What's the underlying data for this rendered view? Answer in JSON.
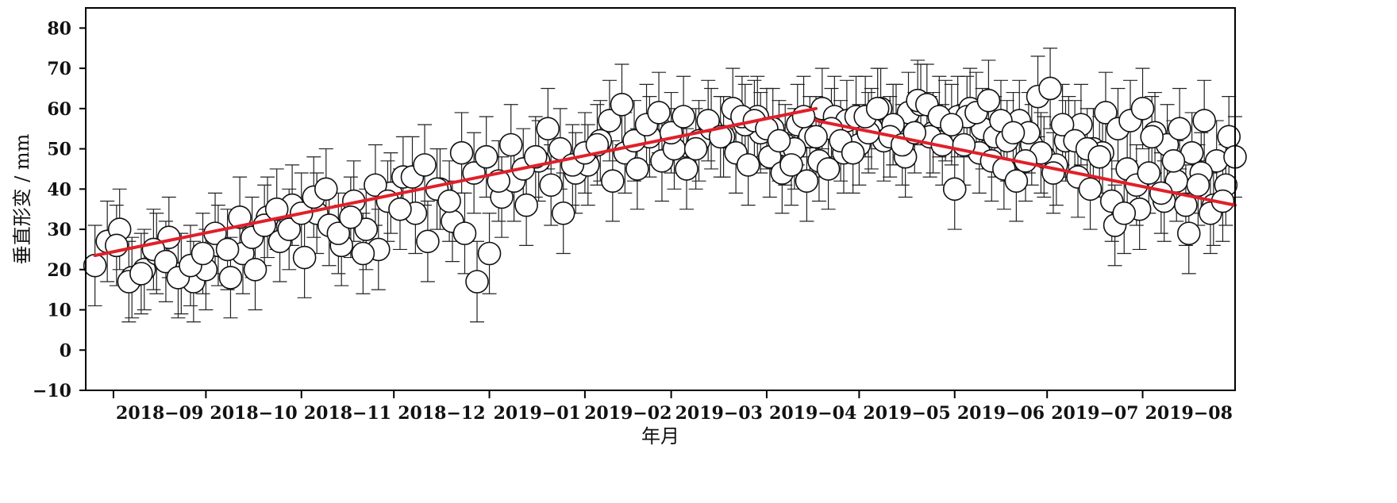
{
  "chart_data": {
    "type": "scatter",
    "title": "",
    "xlabel": "年月",
    "ylabel": "垂直形变 / mm",
    "ylim": [
      -10,
      85
    ],
    "xlim": [
      "2018-08-23",
      "2019-08-31"
    ],
    "grid": false,
    "legend": "none",
    "y_ticks": [
      -10,
      0,
      10,
      20,
      30,
      40,
      50,
      60,
      70,
      80
    ],
    "x_tick_labels": [
      "2018-09",
      "2018-10",
      "2018-11",
      "2018-12",
      "2019-01",
      "2019-02",
      "2019-03",
      "2019-04",
      "2019-05",
      "2019-06",
      "2019-07",
      "2019-08"
    ],
    "x_tick_dates": [
      "2018-09-01",
      "2018-10-01",
      "2018-11-01",
      "2018-12-01",
      "2019-01-01",
      "2019-02-01",
      "2019-03-01",
      "2019-04-01",
      "2019-05-01",
      "2019-06-01",
      "2019-07-01",
      "2019-08-01"
    ],
    "marker": {
      "shape": "circle",
      "fill": "#ffffff",
      "stroke": "#111111"
    },
    "error_bar_halfwidth_mm": 10,
    "series": [
      {
        "x": [
          "2018-08-26",
          "2018-08-30",
          "2018-09-03",
          "2018-09-07",
          "2018-09-11",
          "2018-09-15",
          "2018-09-19",
          "2018-09-23",
          "2018-09-27",
          "2018-10-01",
          "2018-10-05",
          "2018-10-09",
          "2018-10-13",
          "2018-10-17",
          "2018-10-21",
          "2018-10-25",
          "2018-10-29",
          "2018-11-02",
          "2018-11-06",
          "2018-11-10",
          "2018-11-14",
          "2018-11-18",
          "2018-11-22",
          "2018-11-26",
          "2018-11-30",
          "2018-12-04",
          "2018-12-08",
          "2018-12-12",
          "2018-12-16",
          "2018-12-20",
          "2018-12-24",
          "2018-12-28",
          "2019-01-01",
          "2019-01-05",
          "2019-01-09",
          "2019-01-13",
          "2019-01-17",
          "2019-01-21",
          "2019-01-25",
          "2019-01-29",
          "2019-02-02",
          "2019-02-06",
          "2019-02-10",
          "2019-02-14",
          "2019-02-18",
          "2019-02-22",
          "2019-02-26",
          "2019-03-02",
          "2019-03-06",
          "2019-03-10",
          "2019-03-14",
          "2019-03-18",
          "2019-03-22",
          "2019-03-26",
          "2019-03-30",
          "2019-04-03",
          "2019-04-07",
          "2019-04-11",
          "2019-04-15",
          "2019-04-19",
          "2019-04-23",
          "2019-04-27",
          "2019-05-01",
          "2019-05-05",
          "2019-05-09",
          "2019-05-13",
          "2019-05-17",
          "2019-05-21",
          "2019-05-25",
          "2019-05-29",
          "2019-06-02",
          "2019-06-06",
          "2019-06-10",
          "2019-06-14",
          "2019-06-18",
          "2019-06-22",
          "2019-06-26",
          "2019-06-30",
          "2019-07-04",
          "2019-07-08",
          "2019-07-12",
          "2019-07-16",
          "2019-07-20",
          "2019-07-24",
          "2019-07-28",
          "2019-08-01",
          "2019-08-05",
          "2019-08-09",
          "2019-08-13",
          "2019-08-17",
          "2019-08-21",
          "2019-08-25",
          "2019-08-29"
        ],
        "y": [
          21,
          27,
          30,
          18,
          20,
          24,
          28,
          19,
          17,
          20,
          26,
          18,
          24,
          20,
          33,
          27,
          36,
          23,
          34,
          31,
          26,
          37,
          30,
          25,
          39,
          43,
          34,
          27,
          40,
          32,
          29,
          17,
          24,
          38,
          42,
          36,
          47,
          41,
          34,
          44,
          46,
          52,
          42,
          49,
          45,
          53,
          47,
          50,
          45,
          52,
          55,
          53,
          49,
          46,
          54,
          55,
          51,
          56,
          53,
          60,
          58,
          57,
          51,
          55,
          52,
          56,
          59,
          61,
          54,
          57,
          58,
          60,
          55,
          53,
          52,
          57,
          51,
          48,
          46,
          53,
          56,
          50,
          59,
          55,
          57,
          60,
          54,
          51,
          55,
          49,
          57,
          47,
          53
        ]
      },
      {
        "x": [
          "2018-09-02",
          "2018-09-06",
          "2018-09-10",
          "2018-09-14",
          "2018-09-18",
          "2018-09-22",
          "2018-09-26",
          "2018-09-30",
          "2018-10-04",
          "2018-10-08",
          "2018-10-12",
          "2018-10-16",
          "2018-10-20",
          "2018-10-24",
          "2018-10-28",
          "2018-11-01",
          "2018-11-05",
          "2018-11-09",
          "2018-11-13",
          "2018-11-17",
          "2018-11-21",
          "2018-11-25",
          "2018-11-29",
          "2018-12-03",
          "2018-12-07",
          "2018-12-11",
          "2018-12-15",
          "2018-12-19",
          "2018-12-23",
          "2018-12-27",
          "2018-12-31",
          "2019-01-04",
          "2019-01-08",
          "2019-01-12",
          "2019-01-16",
          "2019-01-20",
          "2019-01-24",
          "2019-01-28",
          "2019-02-01",
          "2019-02-05",
          "2019-02-09",
          "2019-02-13",
          "2019-02-17",
          "2019-02-21",
          "2019-02-25",
          "2019-03-01",
          "2019-03-05",
          "2019-03-09",
          "2019-03-13",
          "2019-03-17",
          "2019-03-21",
          "2019-03-25",
          "2019-03-29",
          "2019-04-02",
          "2019-04-06",
          "2019-04-10",
          "2019-04-14",
          "2019-04-18",
          "2019-04-22",
          "2019-04-26",
          "2019-04-30",
          "2019-05-04",
          "2019-05-08",
          "2019-05-12",
          "2019-05-16",
          "2019-05-20",
          "2019-05-24",
          "2019-05-28",
          "2019-06-01",
          "2019-06-05",
          "2019-06-09",
          "2019-06-13",
          "2019-06-17",
          "2019-06-21",
          "2019-06-25",
          "2019-06-29",
          "2019-07-03",
          "2019-07-07",
          "2019-07-11",
          "2019-07-15",
          "2019-07-19",
          "2019-07-23",
          "2019-07-27",
          "2019-07-31",
          "2019-08-04",
          "2019-08-08",
          "2019-08-12",
          "2019-08-16",
          "2019-08-20",
          "2019-08-24",
          "2019-08-28"
        ],
        "y": [
          26,
          17,
          19,
          25,
          22,
          18,
          21,
          24,
          29,
          25,
          33,
          28,
          31,
          35,
          30,
          34,
          38,
          40,
          29,
          33,
          24,
          41,
          37,
          35,
          43,
          46,
          40,
          37,
          49,
          44,
          48,
          42,
          51,
          45,
          48,
          55,
          50,
          46,
          49,
          51,
          57,
          61,
          52,
          56,
          59,
          54,
          58,
          50,
          57,
          53,
          60,
          56,
          58,
          48,
          44,
          50,
          42,
          47,
          55,
          49,
          58,
          54,
          60,
          56,
          48,
          62,
          53,
          51,
          40,
          58,
          49,
          47,
          45,
          42,
          54,
          49,
          44,
          52,
          43,
          40,
          49,
          31,
          45,
          35,
          53,
          37,
          42,
          29,
          44,
          36,
          41
        ]
      },
      {
        "x": [
          "2019-03-24",
          "2019-03-28",
          "2019-04-01",
          "2019-04-05",
          "2019-04-09",
          "2019-04-13",
          "2019-04-17",
          "2019-04-21",
          "2019-04-25",
          "2019-04-29",
          "2019-05-03",
          "2019-05-07",
          "2019-05-11",
          "2019-05-15",
          "2019-05-19",
          "2019-05-23",
          "2019-05-27",
          "2019-05-31",
          "2019-06-04",
          "2019-06-08",
          "2019-06-12",
          "2019-06-16",
          "2019-06-20",
          "2019-06-24",
          "2019-06-28",
          "2019-07-02",
          "2019-07-06",
          "2019-07-10",
          "2019-07-14",
          "2019-07-18",
          "2019-07-22",
          "2019-07-26",
          "2019-07-30",
          "2019-08-03",
          "2019-08-07",
          "2019-08-11",
          "2019-08-15",
          "2019-08-19",
          "2019-08-23",
          "2019-08-27",
          "2019-08-31"
        ],
        "y": [
          58,
          57,
          55,
          52,
          46,
          58,
          53,
          45,
          52,
          49,
          58,
          60,
          53,
          51,
          54,
          61,
          58,
          56,
          51,
          59,
          62,
          57,
          54,
          47,
          63,
          65,
          56,
          52,
          50,
          48,
          37,
          34,
          41,
          44,
          39,
          47,
          36,
          41,
          34,
          37,
          48
        ]
      }
    ],
    "trend_lines": [
      {
        "color": "#e0202a",
        "x": [
          "2018-08-26",
          "2019-04-17"
        ],
        "y": [
          23.5,
          60
        ]
      },
      {
        "color": "#e0202a",
        "x": [
          "2019-04-17",
          "2019-08-31"
        ],
        "y": [
          57,
          36
        ]
      }
    ]
  }
}
